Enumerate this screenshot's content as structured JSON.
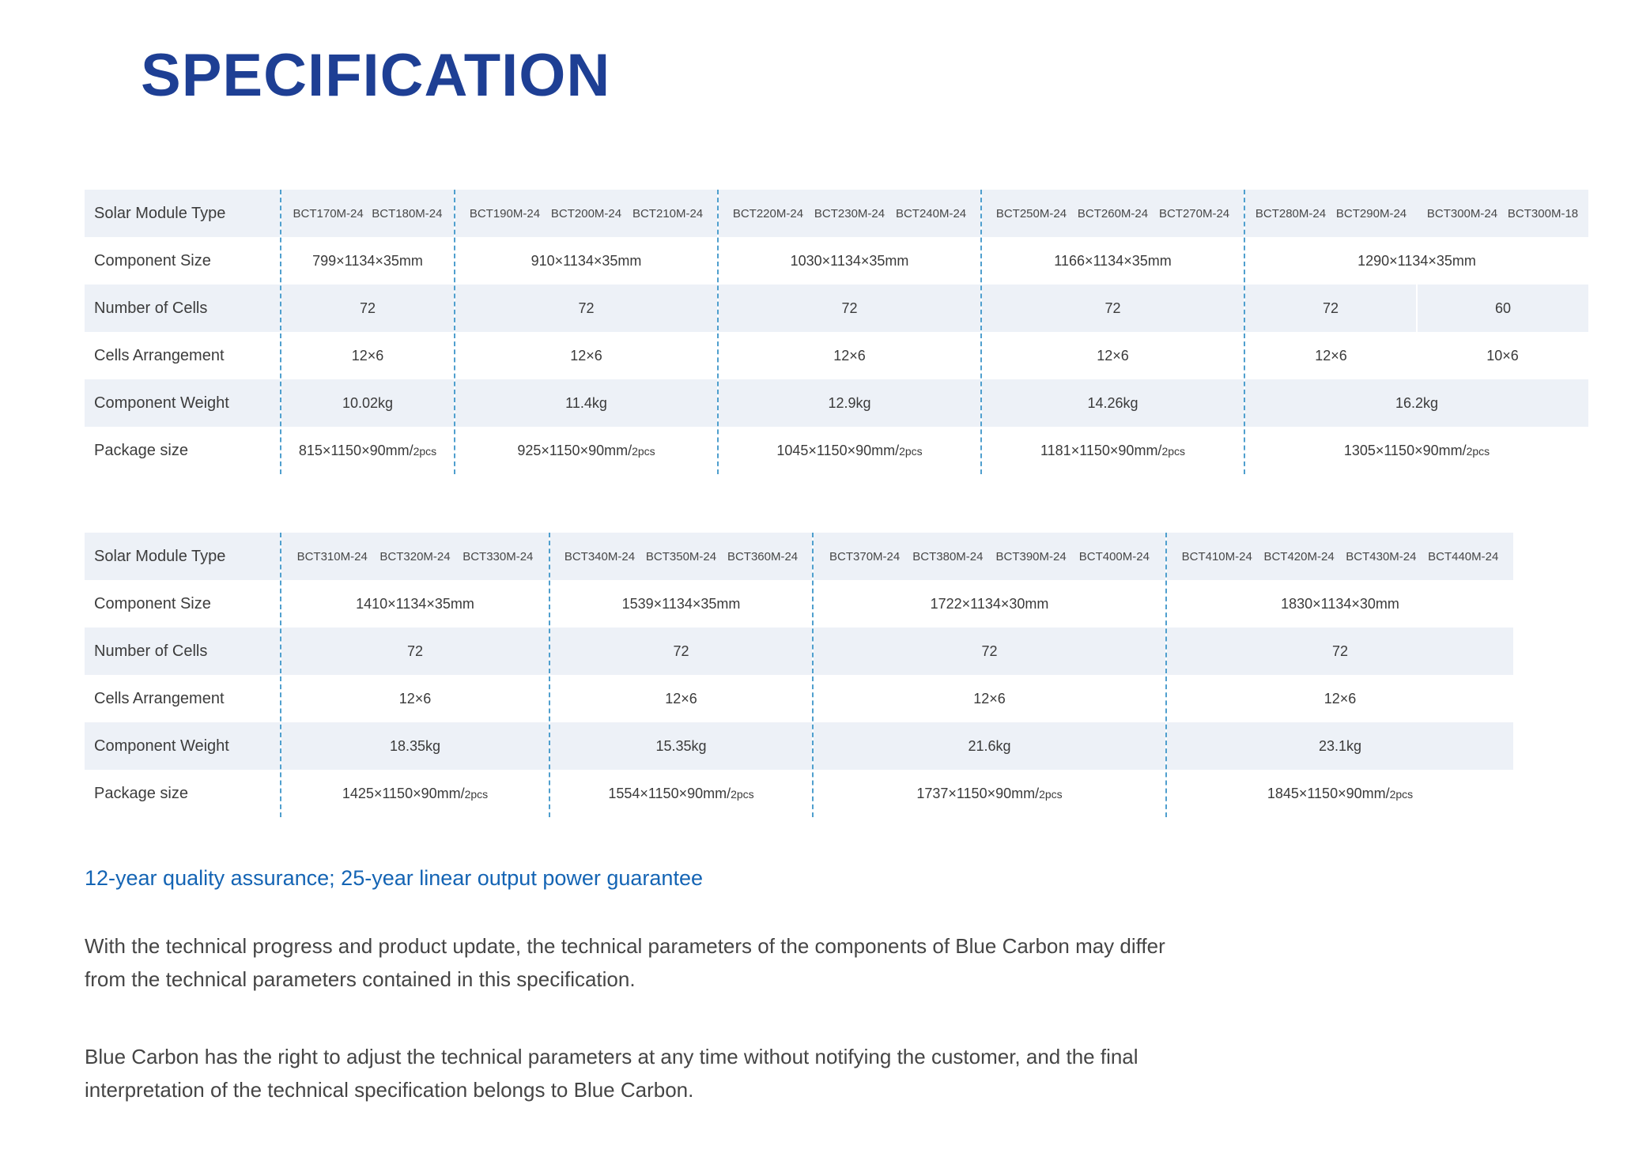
{
  "title": "SPECIFICATION",
  "labels": {
    "module_type": "Solar Module Type",
    "component_size": "Component Size",
    "num_cells": "Number of Cells",
    "cells_arrangement": "Cells Arrangement",
    "component_weight": "Component Weight",
    "package_size": "Package size"
  },
  "colors": {
    "title_blue": "#1e3f94",
    "row_stripe": "#edf1f7",
    "dashed_divider": "#4f9fce",
    "assurance_blue": "#1464b4"
  },
  "table1": {
    "groups": [
      {
        "models": [
          "BCT170M-24",
          "BCT180M-24"
        ],
        "component_size": "799×1134×35mm",
        "num_cells": "72",
        "cells_arrangement": "12×6",
        "component_weight": "10.02kg",
        "package_size": "815×1150×90mm/",
        "package_unit": "2pcs"
      },
      {
        "models": [
          "BCT190M-24",
          "BCT200M-24",
          "BCT210M-24"
        ],
        "component_size": "910×1134×35mm",
        "num_cells": "72",
        "cells_arrangement": "12×6",
        "component_weight": "11.4kg",
        "package_size": "925×1150×90mm/",
        "package_unit": "2pcs"
      },
      {
        "models": [
          "BCT220M-24",
          "BCT230M-24",
          "BCT240M-24"
        ],
        "component_size": "1030×1134×35mm",
        "num_cells": "72",
        "cells_arrangement": "12×6",
        "component_weight": "12.9kg",
        "package_size": "1045×1150×90mm/",
        "package_unit": "2pcs"
      },
      {
        "models": [
          "BCT250M-24",
          "BCT260M-24",
          "BCT270M-24"
        ],
        "component_size": "1166×1134×35mm",
        "num_cells": "72",
        "cells_arrangement": "12×6",
        "component_weight": "14.26kg",
        "package_size": "1181×1150×90mm/",
        "package_unit": "2pcs"
      },
      {
        "models": [
          "BCT280M-24",
          "BCT290M-24",
          "BCT300M-24",
          "BCT300M-18"
        ],
        "component_size": "1290×1134×35mm",
        "num_cells_left": "72",
        "num_cells_right": "60",
        "cells_arrangement_left": "12×6",
        "cells_arrangement_right": "10×6",
        "component_weight": "16.2kg",
        "package_size": "1305×1150×90mm/",
        "package_unit": "2pcs"
      }
    ]
  },
  "table2": {
    "groups": [
      {
        "models": [
          "BCT310M-24",
          "BCT320M-24",
          "BCT330M-24"
        ],
        "component_size": "1410×1134×35mm",
        "num_cells": "72",
        "cells_arrangement": "12×6",
        "component_weight": "18.35kg",
        "package_size": "1425×1150×90mm/",
        "package_unit": "2pcs"
      },
      {
        "models": [
          "BCT340M-24",
          "BCT350M-24",
          "BCT360M-24"
        ],
        "component_size": "1539×1134×35mm",
        "num_cells": "72",
        "cells_arrangement": "12×6",
        "component_weight": "15.35kg",
        "package_size": "1554×1150×90mm/",
        "package_unit": "2pcs"
      },
      {
        "models": [
          "BCT370M-24",
          "BCT380M-24",
          "BCT390M-24",
          "BCT400M-24"
        ],
        "component_size": "1722×1134×30mm",
        "num_cells": "72",
        "cells_arrangement": "12×6",
        "component_weight": "21.6kg",
        "package_size": "1737×1150×90mm/",
        "package_unit": "2pcs"
      },
      {
        "models": [
          "BCT410M-24",
          "BCT420M-24",
          "BCT430M-24",
          "BCT440M-24"
        ],
        "component_size": "1830×1134×30mm",
        "num_cells": "72",
        "cells_arrangement": "12×6",
        "component_weight": "23.1kg",
        "package_size": "1845×1150×90mm/",
        "package_unit": "2pcs"
      }
    ]
  },
  "footer": {
    "assurance": "12-year quality assurance; 25-year linear output power guarantee",
    "para1_line1": "With the technical progress and product update, the technical parameters of the components of Blue Carbon may differ",
    "para1_line2": "from the technical parameters contained in this specification.",
    "para2_line1": "Blue Carbon has the right to adjust the technical parameters at any time without notifying the customer, and the final",
    "para2_line2": "interpretation of the technical specification belongs to Blue Carbon."
  }
}
